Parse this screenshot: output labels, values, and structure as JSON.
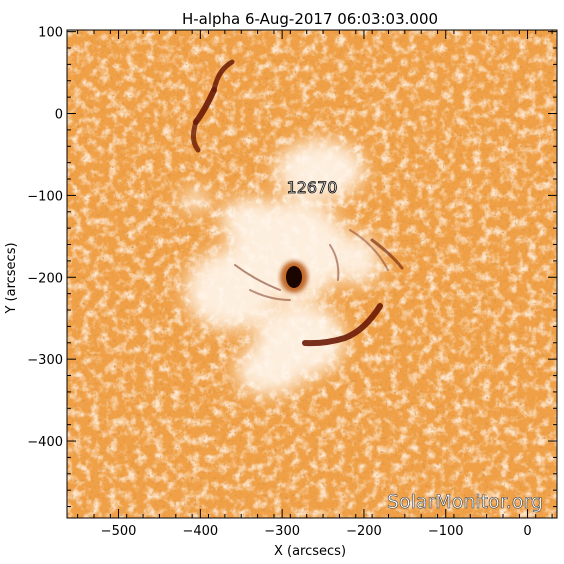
{
  "title": "H-alpha   6-Aug-2017 06:03:03.000",
  "x_axis": {
    "label": "X (arcsecs)",
    "ticks": [
      {
        "value": -500,
        "label": "−500"
      },
      {
        "value": -400,
        "label": "−400"
      },
      {
        "value": -300,
        "label": "−300"
      },
      {
        "value": -200,
        "label": "−200"
      },
      {
        "value": -100,
        "label": "−100"
      },
      {
        "value": 0,
        "label": "0"
      }
    ]
  },
  "y_axis": {
    "label": "Y (arcsecs)",
    "ticks": [
      {
        "value": 100,
        "label": "100"
      },
      {
        "value": 0,
        "label": "0"
      },
      {
        "value": -100,
        "label": "−100"
      },
      {
        "value": -200,
        "label": "−200"
      },
      {
        "value": -300,
        "label": "−300"
      },
      {
        "value": -400,
        "label": "−400"
      }
    ]
  },
  "region_label": "12670",
  "watermark": "SolarMonitor.org",
  "colors": {
    "base": "#f3a248",
    "dark": "#a84a10",
    "bright": "#fff6ec",
    "filament": "#6a1a05"
  }
}
